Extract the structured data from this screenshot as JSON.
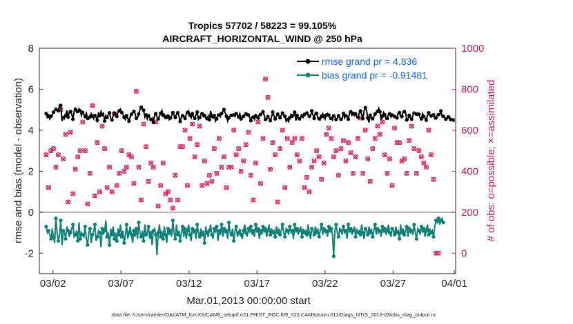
{
  "chart_data": {
    "type": "line",
    "title": "Tropics 57702 / 58223 = 99.105%",
    "subtitle": "AIRCRAFT_HORIZONTAL_WIND @ 250 hPa",
    "xlabel": "Mar.01,2013 00:00:00 start",
    "ylabel": "rmse and bias (model - observation)",
    "ylabel_right": "# of obs: o=possible; ×=assimilated",
    "ylim": [
      -3,
      8
    ],
    "ylim_right": [
      -100,
      1000
    ],
    "xlim": [
      0.5,
      31.1
    ],
    "x_ticks": [
      {
        "value": 1.5,
        "label": "03/02"
      },
      {
        "value": 6.5,
        "label": "03/07"
      },
      {
        "value": 11.5,
        "label": "03/12"
      },
      {
        "value": 16.5,
        "label": "03/17"
      },
      {
        "value": 21.5,
        "label": "03/22"
      },
      {
        "value": 26.5,
        "label": "03/27"
      },
      {
        "value": 31,
        "label": "04/01"
      }
    ],
    "y_ticks": [
      "-2",
      "0",
      "2",
      "4",
      "6",
      "8"
    ],
    "y_ticks_right": [
      "0",
      "200",
      "400",
      "600",
      "800",
      "1000"
    ],
    "zero_line": 0,
    "legend": [
      "rmse grand pr = 4.836",
      "bias grand pr = -0.91481"
    ],
    "colors": {
      "rmse": "#000000",
      "bias": "#0e8076",
      "obs": "#d81b60",
      "zero": "#b0b0b0",
      "legend_text": "#1565e0"
    },
    "series": [
      {
        "name": "rmse",
        "values": [
          4.81,
          4.62,
          4.7,
          4.55,
          4.68,
          4.72,
          4.88,
          4.95,
          5.02,
          4.98,
          4.95,
          5.25,
          5.21,
          4.45,
          4.62,
          4.56,
          4.72,
          4.97,
          4.64,
          4.89,
          4.91,
          4.78,
          4.54,
          4.93,
          5.03,
          4.87,
          4.92,
          5.05,
          4.95,
          4.72,
          4.87,
          4.77,
          4.67,
          4.83,
          4.58,
          4.55,
          4.65,
          4.81,
          4.68,
          4.56,
          4.72,
          4.63,
          4.48,
          4.87,
          4.71,
          4.92,
          4.76,
          4.83,
          4.45,
          4.71,
          4.62,
          4.78,
          4.85,
          4.59,
          4.5,
          4.69,
          4.84,
          4.72,
          4.68,
          4.9,
          4.95,
          5.03,
          4.87,
          4.78,
          4.63,
          4.52,
          4.71,
          4.58,
          4.44,
          4.67,
          4.78,
          4.85,
          4.92,
          4.81,
          4.58,
          4.6,
          4.79,
          4.99,
          5.12,
          5.04,
          4.98,
          4.64,
          4.75,
          4.55,
          4.71,
          4.62,
          4.52,
          4.6,
          4.38,
          4.72,
          4.81,
          4.64,
          4.55,
          4.69,
          4.83,
          4.97,
          4.72,
          4.78,
          4.63,
          4.57,
          4.7,
          4.51,
          4.6,
          4.7,
          4.86,
          4.74,
          4.62,
          4.78,
          4.85,
          4.69,
          4.43,
          4.62,
          4.71,
          4.68,
          4.58,
          4.79,
          4.87,
          4.94,
          4.73,
          4.6,
          4.81,
          4.67,
          4.58,
          4.75,
          4.89,
          4.53,
          4.62,
          4.75,
          4.81,
          4.66,
          4.72,
          4.59,
          4.57,
          4.7,
          4.51,
          4.95,
          4.68,
          4.59,
          4.72,
          4.44,
          4.56,
          4.78,
          4.74,
          4.66,
          4.82,
          4.91,
          5.01,
          4.83,
          4.68,
          4.44,
          4.6,
          4.7,
          4.73,
          4.69,
          4.75,
          4.67,
          4.81,
          4.75,
          4.65,
          4.81,
          4.55,
          4.62,
          4.68,
          4.73,
          4.8,
          4.81,
          4.74,
          4.63,
          4.47,
          4.66,
          4.64,
          4.52,
          4.71,
          4.63,
          4.6,
          4.77,
          4.77,
          4.86,
          4.9,
          4.73,
          4.52,
          4.52,
          4.67,
          4.59,
          4.47,
          4.64,
          4.89,
          4.7,
          4.55,
          4.68,
          4.79,
          4.73,
          4.61,
          4.73,
          4.84,
          4.72,
          4.68,
          4.43,
          4.52,
          4.42,
          4.61,
          4.78,
          4.69,
          4.72,
          4.88,
          4.47,
          4.72,
          4.55,
          4.56,
          4.64,
          4.7,
          4.63,
          4.77,
          4.85,
          4.84,
          4.75,
          4.68,
          4.69,
          4.95,
          4.74,
          4.58,
          4.87,
          4.82,
          4.6,
          4.56,
          4.5,
          4.68,
          4.81,
          4.67,
          4.55,
          4.74,
          4.82,
          4.74,
          4.55,
          4.58,
          4.49,
          4.71,
          4.66,
          4.52,
          4.58,
          4.71,
          4.62,
          4.53,
          4.57,
          4.82,
          4.6,
          4.71,
          4.68,
          4.54,
          4.84,
          4.9,
          4.73,
          4.82,
          4.71,
          4.8,
          4.65,
          4.63,
          4.83,
          4.94,
          4.77,
          4.57,
          4.95,
          5.1,
          4.96,
          4.6,
          4.38,
          4.73,
          4.64,
          4.56,
          4.66,
          4.79,
          4.84,
          4.92,
          5.07,
          4.9,
          4.5,
          4.69,
          4.87,
          4.75,
          4.55,
          4.58,
          4.79,
          4.8,
          4.64,
          4.74,
          4.72,
          4.67,
          4.62,
          4.6,
          4.85,
          4.86,
          4.66,
          4.67,
          4.89,
          4.91,
          4.89,
          4.5,
          4.55,
          4.73,
          4.61,
          4.54,
          4.71,
          4.84,
          4.78,
          4.78,
          4.84,
          4.78,
          4.6,
          4.55,
          4.81,
          4.67,
          4.6,
          4.49,
          4.71,
          4.85,
          4.74,
          4.7,
          4.73,
          4.75,
          4.56,
          4.6,
          4.74,
          4.76,
          4.77,
          4.94,
          4.66,
          4.68,
          4.62,
          4.54,
          4.56,
          4.65,
          4.68,
          4.52,
          4.56,
          4.51,
          4.4
        ]
      },
      {
        "name": "bias",
        "values": [
          -0.7,
          -1.0,
          -0.9,
          -1.1,
          -1.3,
          -0.8,
          -1.2,
          -1.5,
          -0.3,
          -1.0,
          -1.4,
          -1.1,
          -0.4,
          -1.6,
          -0.9,
          -1.0,
          -1.3,
          -0.7,
          -0.9,
          -1.2,
          -1.0,
          -0.8,
          -0.6,
          -1.2,
          -1.1,
          -0.9,
          -1.4,
          -0.5,
          -1.3,
          -1.0,
          -1.1,
          -1.2,
          -0.7,
          -1.3,
          -1.6,
          -1.0,
          -0.8,
          -1.5,
          -1.1,
          -0.9,
          -0.6,
          -1.4,
          -1.2,
          -0.9,
          -1.0,
          -1.7,
          -0.8,
          -1.1,
          -0.9,
          -0.4,
          -1.2,
          -1.0,
          -1.6,
          -0.8,
          -1.1,
          -0.7,
          -1.3,
          -1.0,
          -1.4,
          -0.8,
          -1.1,
          -0.6,
          -1.2,
          -0.9,
          -1.5,
          -1.1,
          -0.6,
          -1.3,
          -1.0,
          -0.7,
          -1.1,
          -1.5,
          -0.9,
          -1.2,
          -0.8,
          -1.3,
          -0.5,
          -1.0,
          -1.2,
          -0.9,
          -1.4,
          -0.6,
          -1.1,
          -1.0,
          -0.7,
          -1.3,
          -1.0,
          -1.6,
          -0.9,
          -0.8,
          -1.1,
          -2.1,
          -1.0,
          -0.6,
          -1.2,
          -0.9,
          -1.3,
          -0.7,
          -1.1,
          -1.5,
          -0.8,
          -1.1,
          -0.9,
          -1.2,
          -0.4,
          -1.0,
          -1.3,
          -0.6,
          -1.1,
          -0.9,
          -1.4,
          -1.0,
          -0.7,
          -1.2,
          -0.8,
          -1.3,
          -0.9,
          -0.6,
          -1.1,
          -1.4,
          -0.8,
          -1.0,
          -0.9,
          -1.3,
          -0.6,
          -1.0,
          -1.2,
          -0.8,
          -1.1,
          -0.9,
          -1.5,
          -0.7,
          -1.0,
          -1.2,
          -0.9,
          -0.6,
          -1.1,
          -1.3,
          -0.8,
          -1.0,
          -0.7,
          -1.4,
          -0.9,
          -1.1,
          -0.6,
          -1.2,
          -0.8,
          -1.0,
          -0.9,
          -1.3,
          -0.5,
          -1.0,
          -1.1,
          -0.8,
          -1.4,
          -0.9,
          -0.7,
          -1.2,
          -1.0,
          -0.8,
          -1.1,
          -1.3,
          -0.9,
          -0.6,
          -1.0,
          -1.2,
          -0.8,
          -1.0,
          -0.7,
          -1.1,
          -0.9,
          -1.2,
          -0.6,
          -1.0,
          -0.8,
          -1.3,
          -0.9,
          -1.1,
          -0.7,
          -1.0,
          -0.8,
          -1.2,
          -0.9,
          -0.6,
          -1.1,
          -0.8,
          -1.0,
          -0.9,
          -1.2,
          -0.7,
          -1.0,
          -0.8,
          -1.1,
          -0.9,
          -0.6,
          -1.0,
          -1.2,
          -0.8,
          -0.9,
          -1.1,
          -0.7,
          -1.0,
          -0.9,
          -1.3,
          -0.6,
          -1.0,
          -0.8,
          -1.1,
          -0.9,
          -0.7,
          -1.2,
          -0.8,
          -1.0,
          -0.9,
          -1.1,
          -0.6,
          -1.0,
          -1.3,
          -0.8,
          -0.9,
          -1.1,
          -0.7,
          -1.0,
          -0.8,
          -1.2,
          -0.9,
          -0.6,
          -1.1,
          -0.8,
          -1.0,
          -0.9,
          -1.2,
          -0.7,
          -1.0,
          -0.8,
          -1.1,
          -2.15,
          -0.9,
          -0.6,
          -1.0,
          -1.2,
          -0.8,
          -0.9,
          -1.1,
          -0.7,
          -1.0,
          -0.9,
          -1.3,
          -0.6,
          -1.0,
          -0.8,
          -1.1,
          -0.9,
          -0.7,
          -1.2,
          -0.8,
          -1.0,
          -0.9,
          -1.1,
          -0.6,
          -1.0,
          -1.3,
          -0.8,
          -0.9,
          -1.1,
          -0.7,
          -1.0,
          -0.8,
          -1.2,
          -0.9,
          -0.6,
          -1.1,
          -0.8,
          -1.0,
          -0.9,
          -1.2,
          -0.7,
          -1.0,
          -0.8,
          -1.1,
          -0.9,
          -0.6,
          -1.0,
          -1.2,
          -0.8,
          -0.9,
          -1.1,
          -0.7,
          -1.0,
          -0.9,
          -1.3,
          -0.6,
          -1.0,
          -0.8,
          -1.1,
          -0.9,
          -0.7,
          -1.2,
          -0.8,
          -1.0,
          -0.9,
          -1.1,
          -0.6,
          -1.0,
          -1.3,
          -0.8,
          -0.9,
          -1.1,
          -0.7,
          -1.0,
          -0.8,
          -1.2,
          -0.9,
          -0.6,
          -1.1,
          -0.8,
          -1.0,
          -0.9,
          -1.2,
          -0.7,
          -0.4,
          -0.5,
          -0.3,
          -0.6,
          -0.4,
          -0.3,
          -0.5
        ]
      },
      {
        "name": "obs_possible",
        "values": [
          480,
          420,
          320,
          460,
          500,
          350,
          510,
          540,
          420,
          350,
          480,
          580,
          700,
          790,
          460,
          300,
          580,
          470,
          250,
          320,
          590,
          330,
          290,
          580,
          410,
          380,
          470,
          400,
          500,
          680,
          640,
          370,
          500,
          620,
          240,
          590,
          390,
          460,
          720,
          380,
          280,
          350,
          540,
          430,
          300,
          400,
          620,
          250,
          510,
          270,
          320,
          570,
          420,
          450,
          300,
          640,
          680,
          230,
          330,
          280,
          390,
          380,
          500,
          600,
          400,
          350,
          420,
          540,
          480,
          310,
          470,
          420,
          340,
          450,
          790,
          690,
          420,
          300,
          260,
          480,
          630,
          530,
          520,
          590,
          350,
          360,
          440,
          380,
          420,
          800,
          640,
          530,
          230,
          350,
          330,
          310,
          440,
          470,
          290,
          670,
          300,
          400,
          260,
          340,
          220,
          440,
          380,
          330,
          260,
          350,
          520,
          640,
          520,
          500,
          600,
          660,
          330,
          420,
          560,
          640,
          630,
          340,
          470,
          320,
          530,
          640,
          620,
          610,
          330,
          300,
          450,
          540,
          340,
          280,
          380,
          390,
          350,
          380,
          510,
          430,
          390,
          330,
          560,
          680,
          420,
          540,
          470,
          270,
          320,
          520,
          420,
          530,
          420,
          590,
          600,
          390,
          480,
          580,
          510,
          390,
          400,
          420,
          450,
          600,
          530,
          540,
          590,
          640,
          380,
          440,
          260,
          560,
          440,
          390,
          640,
          660,
          340,
          510,
          560,
          460,
          850,
          590,
          760,
          480,
          410,
          520,
          540,
          420,
          480,
          390,
          250,
          540,
          510,
          470,
          600,
          420,
          320,
          400,
          560,
          340,
          420,
          560,
          540,
          460,
          560,
          600,
          480,
          620,
          450,
          480,
          560,
          420,
          320,
          340,
          370,
          470,
          300,
          350,
          420,
          380,
          450,
          560,
          500,
          520,
          470,
          410,
          360,
          400,
          440,
          650,
          580,
          440,
          610,
          430,
          560,
          520,
          470,
          590,
          500,
          600,
          380,
          420,
          510,
          590,
          550,
          450,
          450,
          390,
          540,
          560,
          490,
          350,
          390,
          330,
          470,
          260,
          560,
          480,
          660,
          460,
          390,
          520,
          600,
          520,
          460,
          420,
          350,
          450,
          510,
          430,
          560,
          630,
          620,
          560,
          580,
          460,
          640,
          430,
          480,
          440,
          390,
          500,
          460,
          420,
          330,
          340,
          610,
          600,
          540,
          590,
          540,
          420,
          450,
          330,
          460,
          560,
          390,
          500,
          550,
          470,
          620,
          460,
          510,
          430,
          390,
          470,
          500,
          410,
          470,
          520,
          440,
          400,
          420,
          380,
          600,
          540,
          480,
          340,
          360,
          370,
          0,
          0,
          0
        ]
      }
    ]
  },
  "footer": "data file: /Users/raeder/DAI/ATM_forcXX/CAM6_setup/f.e21.FHIST_BGC.f09_025.CAM6assim.011/Diags_NTrS_2013-03/obs_diag_output.nc"
}
